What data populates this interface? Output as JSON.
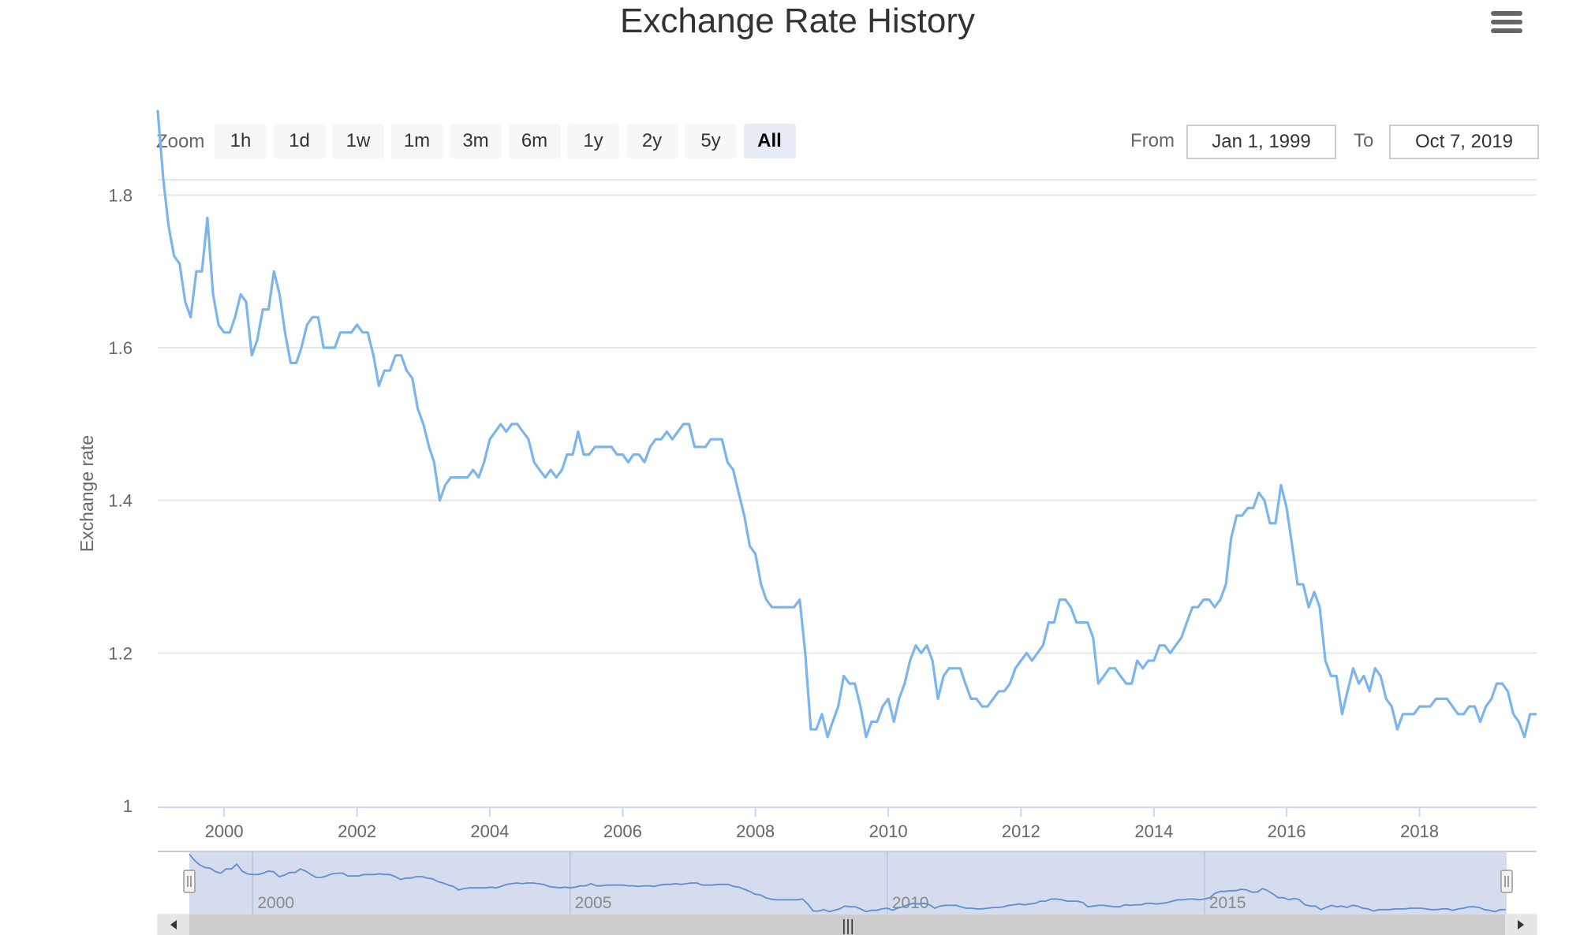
{
  "title": "Exchange Rate History",
  "menu_icon": "hamburger-menu-icon",
  "range_selector": {
    "zoom_label": "Zoom",
    "buttons": [
      "1h",
      "1d",
      "1w",
      "1m",
      "3m",
      "6m",
      "1y",
      "2y",
      "5y",
      "All"
    ],
    "selected": "All",
    "from_label": "From",
    "from_value": "Jan 1, 1999",
    "to_label": "To",
    "to_value": "Oct 7, 2019"
  },
  "navigator": {
    "tick_labels": [
      "2000",
      "2005",
      "2010",
      "2015"
    ],
    "scrollbar_grip": "|||"
  },
  "colors": {
    "line": "#7cb5ec",
    "navigator_mask": "#ccd6eb",
    "selected_button": "#e6ebf5",
    "scrollbar": "#cccccc"
  },
  "chart_data": {
    "type": "line",
    "title": "Exchange Rate History",
    "xlabel": "",
    "ylabel": "Exchange rate",
    "xlim": [
      "1999-01-01",
      "2019-10-07"
    ],
    "ylim": [
      1,
      1.82
    ],
    "y_ticks": [
      1,
      1.2,
      1.4,
      1.6,
      1.8
    ],
    "y_tick_labels": [
      "1",
      "1.2",
      "1.4",
      "1.6",
      "1.8"
    ],
    "x_ticks": [
      "2000-01-01",
      "2002-01-01",
      "2004-01-01",
      "2006-01-01",
      "2008-01-01",
      "2010-01-01",
      "2012-01-01",
      "2014-01-01",
      "2016-01-01",
      "2018-01-01"
    ],
    "x_tick_labels": [
      "2000",
      "2002",
      "2004",
      "2006",
      "2008",
      "2010",
      "2012",
      "2014",
      "2016",
      "2018"
    ],
    "grid": "horizontal",
    "series": [
      {
        "x": [
          "1999-01-01",
          "1999-02-01",
          "1999-03-01",
          "1999-04-01",
          "1999-05-01",
          "1999-06-01",
          "1999-07-01",
          "1999-08-01",
          "1999-09-01",
          "1999-10-01",
          "1999-11-01",
          "1999-12-01",
          "2000-01-01",
          "2000-02-01",
          "2000-03-01",
          "2000-04-01",
          "2000-05-01",
          "2000-06-01",
          "2000-07-01",
          "2000-08-01",
          "2000-09-01",
          "2000-10-01",
          "2000-11-01",
          "2000-12-01",
          "2001-01-01",
          "2001-02-01",
          "2001-03-01",
          "2001-04-01",
          "2001-05-01",
          "2001-06-01",
          "2001-07-01",
          "2001-08-01",
          "2001-09-01",
          "2001-10-01",
          "2001-11-01",
          "2001-12-01",
          "2002-01-01",
          "2002-02-01",
          "2002-03-01",
          "2002-04-01",
          "2002-05-01",
          "2002-06-01",
          "2002-07-01",
          "2002-08-01",
          "2002-09-01",
          "2002-10-01",
          "2002-11-01",
          "2002-12-01",
          "2003-01-01",
          "2003-02-01",
          "2003-03-01",
          "2003-04-01",
          "2003-05-01",
          "2003-06-01",
          "2003-07-01",
          "2003-08-01",
          "2003-09-01",
          "2003-10-01",
          "2003-11-01",
          "2003-12-01",
          "2004-01-01",
          "2004-02-01",
          "2004-03-01",
          "2004-04-01",
          "2004-05-01",
          "2004-06-01",
          "2004-07-01",
          "2004-08-01",
          "2004-09-01",
          "2004-10-01",
          "2004-11-01",
          "2004-12-01",
          "2005-01-01",
          "2005-02-01",
          "2005-03-01",
          "2005-04-01",
          "2005-05-01",
          "2005-06-01",
          "2005-07-01",
          "2005-08-01",
          "2005-09-01",
          "2005-10-01",
          "2005-11-01",
          "2005-12-01",
          "2006-01-01",
          "2006-02-01",
          "2006-03-01",
          "2006-04-01",
          "2006-05-01",
          "2006-06-01",
          "2006-07-01",
          "2006-08-01",
          "2006-09-01",
          "2006-10-01",
          "2006-11-01",
          "2006-12-01",
          "2007-01-01",
          "2007-02-01",
          "2007-03-01",
          "2007-04-01",
          "2007-05-01",
          "2007-06-01",
          "2007-07-01",
          "2007-08-01",
          "2007-09-01",
          "2007-10-01",
          "2007-11-01",
          "2007-12-01",
          "2008-01-01",
          "2008-02-01",
          "2008-03-01",
          "2008-04-01",
          "2008-05-01",
          "2008-06-01",
          "2008-07-01",
          "2008-08-01",
          "2008-09-01",
          "2008-10-01",
          "2008-11-01",
          "2008-12-01",
          "2009-01-01",
          "2009-02-01",
          "2009-03-01",
          "2009-04-01",
          "2009-05-01",
          "2009-06-01",
          "2009-07-01",
          "2009-08-01",
          "2009-09-01",
          "2009-10-01",
          "2009-11-01",
          "2009-12-01",
          "2010-01-01",
          "2010-02-01",
          "2010-03-01",
          "2010-04-01",
          "2010-05-01",
          "2010-06-01",
          "2010-07-01",
          "2010-08-01",
          "2010-09-01",
          "2010-10-01",
          "2010-11-01",
          "2010-12-01",
          "2011-01-01",
          "2011-02-01",
          "2011-03-01",
          "2011-04-01",
          "2011-05-01",
          "2011-06-01",
          "2011-07-01",
          "2011-08-01",
          "2011-09-01",
          "2011-10-01",
          "2011-11-01",
          "2011-12-01",
          "2012-01-01",
          "2012-02-01",
          "2012-03-01",
          "2012-04-01",
          "2012-05-01",
          "2012-06-01",
          "2012-07-01",
          "2012-08-01",
          "2012-09-01",
          "2012-10-01",
          "2012-11-01",
          "2012-12-01",
          "2013-01-01",
          "2013-02-01",
          "2013-03-01",
          "2013-04-01",
          "2013-05-01",
          "2013-06-01",
          "2013-07-01",
          "2013-08-01",
          "2013-09-01",
          "2013-10-01",
          "2013-11-01",
          "2013-12-01",
          "2014-01-01",
          "2014-02-01",
          "2014-03-01",
          "2014-04-01",
          "2014-05-01",
          "2014-06-01",
          "2014-07-01",
          "2014-08-01",
          "2014-09-01",
          "2014-10-01",
          "2014-11-01",
          "2014-12-01",
          "2015-01-01",
          "2015-02-01",
          "2015-03-01",
          "2015-04-01",
          "2015-05-01",
          "2015-06-01",
          "2015-07-01",
          "2015-08-01",
          "2015-09-01",
          "2015-10-01",
          "2015-11-01",
          "2015-12-01",
          "2016-01-01",
          "2016-02-01",
          "2016-03-01",
          "2016-04-01",
          "2016-05-01",
          "2016-06-01",
          "2016-07-01",
          "2016-08-01",
          "2016-09-01",
          "2016-10-01",
          "2016-11-01",
          "2016-12-01",
          "2017-01-01",
          "2017-02-01",
          "2017-03-01",
          "2017-04-01",
          "2017-05-01",
          "2017-06-01",
          "2017-07-01",
          "2017-08-01",
          "2017-09-01",
          "2017-10-01",
          "2017-11-01",
          "2017-12-01",
          "2018-01-01",
          "2018-02-01",
          "2018-03-01",
          "2018-04-01",
          "2018-05-01",
          "2018-06-01",
          "2018-07-01",
          "2018-08-01",
          "2018-09-01",
          "2018-10-01",
          "2018-11-01",
          "2018-12-01",
          "2019-01-01",
          "2019-02-01",
          "2019-03-01",
          "2019-04-01",
          "2019-05-01",
          "2019-06-01",
          "2019-07-01",
          "2019-08-01",
          "2019-09-01",
          "2019-10-01"
        ],
        "y": [
          1.91,
          1.82,
          1.76,
          1.72,
          1.71,
          1.66,
          1.64,
          1.7,
          1.7,
          1.77,
          1.67,
          1.63,
          1.62,
          1.62,
          1.64,
          1.67,
          1.66,
          1.59,
          1.61,
          1.65,
          1.65,
          1.7,
          1.67,
          1.62,
          1.58,
          1.58,
          1.6,
          1.63,
          1.64,
          1.64,
          1.6,
          1.6,
          1.6,
          1.62,
          1.62,
          1.62,
          1.63,
          1.62,
          1.62,
          1.59,
          1.55,
          1.57,
          1.57,
          1.59,
          1.59,
          1.57,
          1.56,
          1.52,
          1.5,
          1.47,
          1.45,
          1.4,
          1.42,
          1.43,
          1.43,
          1.43,
          1.43,
          1.44,
          1.43,
          1.45,
          1.48,
          1.49,
          1.5,
          1.49,
          1.5,
          1.5,
          1.49,
          1.48,
          1.45,
          1.44,
          1.43,
          1.44,
          1.43,
          1.44,
          1.46,
          1.46,
          1.49,
          1.46,
          1.46,
          1.47,
          1.47,
          1.47,
          1.47,
          1.46,
          1.46,
          1.45,
          1.46,
          1.46,
          1.45,
          1.47,
          1.48,
          1.48,
          1.49,
          1.48,
          1.49,
          1.5,
          1.5,
          1.47,
          1.47,
          1.47,
          1.48,
          1.48,
          1.48,
          1.45,
          1.44,
          1.41,
          1.38,
          1.34,
          1.33,
          1.29,
          1.27,
          1.26,
          1.26,
          1.26,
          1.26,
          1.26,
          1.27,
          1.2,
          1.1,
          1.1,
          1.12,
          1.09,
          1.11,
          1.13,
          1.17,
          1.16,
          1.16,
          1.13,
          1.09,
          1.11,
          1.11,
          1.13,
          1.14,
          1.11,
          1.14,
          1.16,
          1.19,
          1.21,
          1.2,
          1.21,
          1.19,
          1.14,
          1.17,
          1.18,
          1.18,
          1.18,
          1.16,
          1.14,
          1.14,
          1.13,
          1.13,
          1.14,
          1.15,
          1.15,
          1.16,
          1.18,
          1.19,
          1.2,
          1.19,
          1.2,
          1.21,
          1.24,
          1.24,
          1.27,
          1.27,
          1.26,
          1.24,
          1.24,
          1.24,
          1.22,
          1.16,
          1.17,
          1.18,
          1.18,
          1.17,
          1.16,
          1.16,
          1.19,
          1.18,
          1.19,
          1.19,
          1.21,
          1.21,
          1.2,
          1.21,
          1.22,
          1.24,
          1.26,
          1.26,
          1.27,
          1.27,
          1.26,
          1.27,
          1.29,
          1.35,
          1.38,
          1.38,
          1.39,
          1.39,
          1.41,
          1.4,
          1.37,
          1.37,
          1.42,
          1.39,
          1.34,
          1.29,
          1.29,
          1.26,
          1.28,
          1.26,
          1.19,
          1.17,
          1.17,
          1.12,
          1.15,
          1.18,
          1.16,
          1.17,
          1.15,
          1.18,
          1.17,
          1.14,
          1.13,
          1.1,
          1.12,
          1.12,
          1.12,
          1.13,
          1.13,
          1.13,
          1.14,
          1.14,
          1.14,
          1.13,
          1.12,
          1.12,
          1.13,
          1.13,
          1.11,
          1.13,
          1.14,
          1.16,
          1.16,
          1.15,
          1.12,
          1.11,
          1.09,
          1.12,
          1.12
        ]
      }
    ]
  }
}
